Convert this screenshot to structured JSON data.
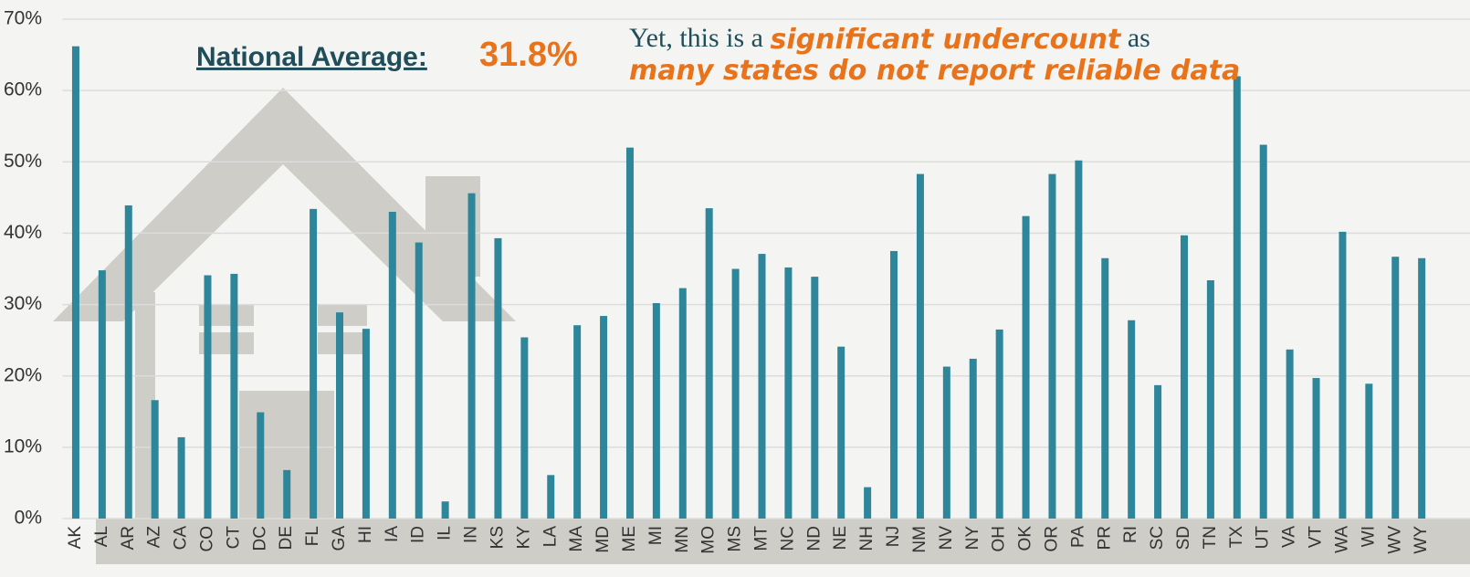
{
  "chart_data": {
    "type": "bar",
    "annotation": {
      "label": "National Average:",
      "value": "31.8%"
    },
    "note": [
      [
        "Yet, this is a ",
        "significant undercount",
        " as"
      ],
      [
        "many states do not report reliable data"
      ]
    ],
    "categories": [
      "AK",
      "AL",
      "AR",
      "AZ",
      "CA",
      "CO",
      "CT",
      "DC",
      "DE",
      "FL",
      "GA",
      "HI",
      "IA",
      "ID",
      "IL",
      "IN",
      "KS",
      "KY",
      "LA",
      "MA",
      "MD",
      "ME",
      "MI",
      "MN",
      "MO",
      "MS",
      "MT",
      "NC",
      "ND",
      "NE",
      "NH",
      "NJ",
      "NM",
      "NV",
      "NY",
      "OH",
      "OK",
      "OR",
      "PA",
      "PR",
      "RI",
      "SC",
      "SD",
      "TN",
      "TX",
      "UT",
      "VA",
      "VT",
      "WA",
      "WI",
      "WV",
      "WY"
    ],
    "values": [
      66.2,
      34.8,
      43.9,
      16.6,
      11.4,
      34.1,
      34.3,
      14.9,
      6.8,
      43.4,
      28.9,
      26.6,
      43.0,
      38.7,
      2.4,
      45.6,
      39.3,
      25.4,
      6.1,
      27.1,
      28.4,
      52.0,
      30.2,
      32.3,
      43.5,
      35.0,
      37.1,
      35.2,
      33.9,
      24.1,
      4.4,
      37.5,
      48.3,
      21.3,
      22.4,
      26.5,
      42.4,
      48.3,
      50.2,
      36.5,
      27.8,
      18.7,
      39.7,
      33.4,
      62.0,
      52.4,
      23.7,
      19.7,
      40.2,
      18.9,
      36.7,
      36.5
    ],
    "color": "#2e869a",
    "ylim": [
      0,
      70
    ],
    "yticks": [
      {
        "value": 0,
        "label": "0%"
      },
      {
        "value": 10,
        "label": "10%"
      },
      {
        "value": 20,
        "label": "20%"
      },
      {
        "value": 30,
        "label": "30%"
      },
      {
        "value": 40,
        "label": "40%"
      },
      {
        "value": 50,
        "label": "50%"
      },
      {
        "value": 60,
        "label": "60%"
      },
      {
        "value": 70,
        "label": "70%"
      }
    ],
    "grid": true
  }
}
